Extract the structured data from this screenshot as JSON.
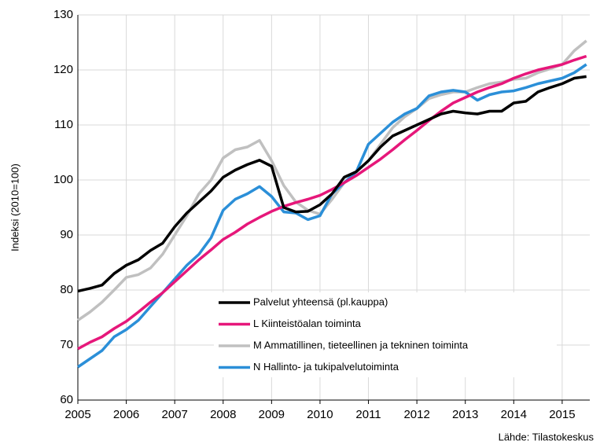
{
  "chart_data": {
    "type": "line",
    "y_label": "Indeksi (2010=100)",
    "source": "Lähde: Tilastokeskus",
    "x": [
      2005,
      2005.25,
      2005.5,
      2005.75,
      2006,
      2006.25,
      2006.5,
      2006.75,
      2007,
      2007.25,
      2007.5,
      2007.75,
      2008,
      2008.25,
      2008.5,
      2008.75,
      2009,
      2009.25,
      2009.5,
      2009.75,
      2010,
      2010.25,
      2010.5,
      2010.75,
      2011,
      2011.25,
      2011.5,
      2011.75,
      2012,
      2012.25,
      2012.5,
      2012.75,
      2013,
      2013.25,
      2013.5,
      2013.75,
      2014,
      2014.25,
      2014.5,
      2014.75,
      2015,
      2015.25,
      2015.5
    ],
    "series": [
      {
        "name": "Palvelut yhteensä  (pl.kauppa)",
        "color": "#000000",
        "values": [
          79.8,
          80.3,
          80.9,
          83,
          84.5,
          85.5,
          87.2,
          88.5,
          91.5,
          94,
          96,
          98,
          100.5,
          101.8,
          102.8,
          103.6,
          102.5,
          95,
          94.2,
          94.3,
          95.5,
          97.5,
          100.5,
          101.5,
          103.5,
          106,
          108,
          109,
          110,
          111,
          112,
          112.5,
          112.2,
          112,
          112.5,
          112.5,
          114,
          114.3,
          116,
          116.8,
          117.5,
          118.5,
          118.8
        ]
      },
      {
        "name": "L Kiinteistöalan toiminta",
        "color": "#e6177a",
        "values": [
          69.3,
          70.5,
          71.5,
          73,
          74.3,
          76,
          77.8,
          79.5,
          81.5,
          83.5,
          85.5,
          87.3,
          89.2,
          90.5,
          92,
          93.2,
          94.3,
          95.2,
          95.9,
          96.5,
          97.2,
          98.3,
          99.5,
          100.8,
          102.3,
          103.8,
          105.5,
          107.3,
          109,
          110.8,
          112.5,
          114,
          115,
          116,
          116.8,
          117.5,
          118.5,
          119.3,
          120,
          120.5,
          121,
          121.8,
          122.5
        ]
      },
      {
        "name": "M Ammatillinen, tieteellinen ja tekninen toiminta",
        "color": "#c0c0c0",
        "values": [
          74.5,
          76,
          77.8,
          80,
          82.3,
          82.8,
          84,
          86.5,
          90,
          93.5,
          97.5,
          100,
          104,
          105.5,
          106,
          107.2,
          103.5,
          99,
          96,
          94.5,
          93.8,
          96.5,
          99.5,
          101.5,
          103.5,
          106.5,
          109.5,
          111.5,
          113,
          114.8,
          115.5,
          116,
          116,
          116.8,
          117.5,
          117.8,
          118.3,
          118.5,
          119.5,
          120.2,
          121,
          123.5,
          125.3
        ]
      },
      {
        "name": "N Hallinto- ja tukipalvelutoiminta",
        "color": "#2b8fd8",
        "values": [
          66,
          67.5,
          69,
          71.5,
          72.8,
          74.5,
          77,
          79.5,
          82,
          84.5,
          86.5,
          89.5,
          94.5,
          96.5,
          97.5,
          98.8,
          97,
          94.2,
          94,
          92.8,
          93.5,
          97.5,
          99.5,
          101.5,
          106.5,
          108.5,
          110.5,
          112,
          113,
          115.3,
          116,
          116.3,
          116,
          114.5,
          115.5,
          116,
          116.2,
          116.8,
          117.5,
          118,
          118.5,
          119.5,
          121
        ]
      }
    ],
    "xlim": [
      2005,
      2015.57
    ],
    "xticks": [
      2005,
      2006,
      2007,
      2008,
      2009,
      2010,
      2011,
      2012,
      2013,
      2014,
      2015
    ],
    "ylim": [
      60,
      130
    ],
    "yticks": [
      60,
      70,
      80,
      90,
      100,
      110,
      120,
      130
    ],
    "grid": true
  }
}
